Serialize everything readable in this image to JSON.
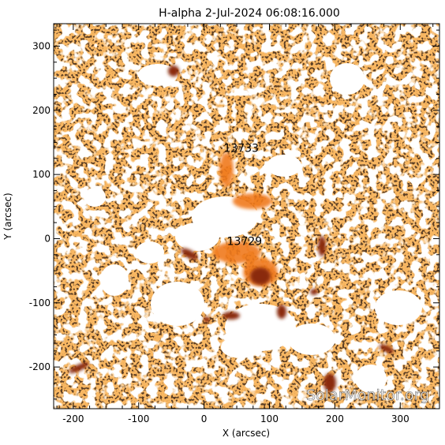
{
  "title": "H-alpha   2-Jul-2024 06:08:16.000",
  "xlabel": "X (arcsec)",
  "ylabel": "Y (arcsec)",
  "xticks": [
    "-200",
    "-100",
    "0",
    "100",
    "200",
    "300"
  ],
  "yticks": [
    "300",
    "200",
    "100",
    "0",
    "-100",
    "-200"
  ],
  "xlim": [
    -230,
    360
  ],
  "ylim": [
    -265,
    335
  ],
  "regions": [
    {
      "label": "13733",
      "x": 30,
      "y": 135
    },
    {
      "label": "13729",
      "x": 35,
      "y": -10
    }
  ],
  "watermark": "SolarMonitor.org",
  "colors": {
    "background": "#ffffff",
    "chromosphere": "#f0791f",
    "chromosphere_light": "#f59a45",
    "dark_fibril": "#1c0d04",
    "active_core": "#8a2a0c"
  }
}
